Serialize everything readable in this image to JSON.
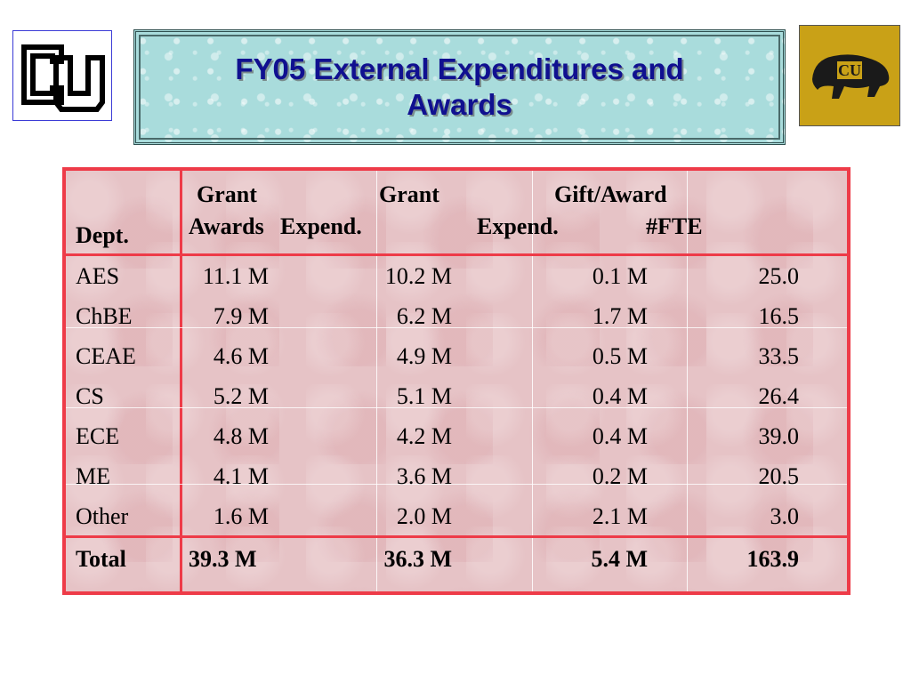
{
  "title": "FY05 External Expenditures and Awards",
  "header": {
    "dept": "Dept.",
    "grant_awards_line1": "Grant",
    "grant_awards_line2": "Awards",
    "grant_expend_line1": "Grant",
    "grant_expend_line2": "Expend.",
    "gift_line1": "Gift/Award",
    "gift_line2": "Expend.",
    "fte": "#FTE"
  },
  "rows": [
    {
      "dept": "AES",
      "grant_awards": "11.1 M",
      "grant_expend": "10.2 M",
      "gift": "0.1 M",
      "fte": "25.0"
    },
    {
      "dept": "ChBE",
      "grant_awards": "7.9 M",
      "grant_expend": "6.2 M",
      "gift": "1.7 M",
      "fte": "16.5"
    },
    {
      "dept": "CEAE",
      "grant_awards": "4.6 M",
      "grant_expend": "4.9 M",
      "gift": "0.5 M",
      "fte": "33.5"
    },
    {
      "dept": "CS",
      "grant_awards": "5.2 M",
      "grant_expend": "5.1 M",
      "gift": "0.4 M",
      "fte": "26.4"
    },
    {
      "dept": "ECE",
      "grant_awards": "4.8 M",
      "grant_expend": "4.2 M",
      "gift": "0.4 M",
      "fte": "39.0"
    },
    {
      "dept": "ME",
      "grant_awards": "4.1 M",
      "grant_expend": "3.6 M",
      "gift": "0.2 M",
      "fte": "20.5"
    },
    {
      "dept": "Other",
      "grant_awards": "1.6 M",
      "grant_expend": "2.0 M",
      "gift": "2.1 M",
      "fte": "3.0"
    }
  ],
  "total": {
    "dept": "Total",
    "grant_awards": "39.3 M",
    "grant_expend": "36.3 M",
    "gift": "5.4 M",
    "fte": "163.9"
  },
  "colors": {
    "table_border": "#ee3b48",
    "title_text": "#101090",
    "title_bg": "#a9dcdc",
    "table_bg": "#e6c3c6",
    "logo_gold": "#c9a117"
  }
}
